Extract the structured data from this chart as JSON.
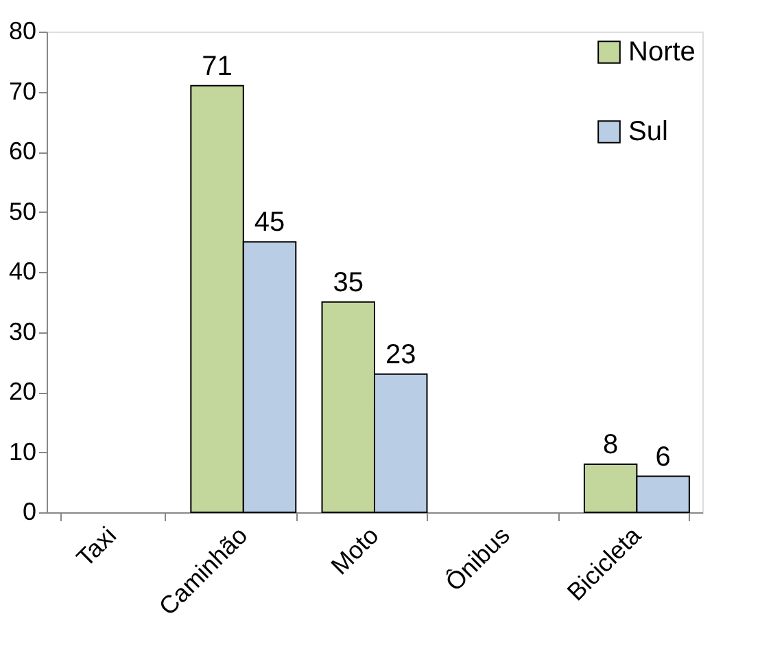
{
  "chart_data": {
    "type": "bar",
    "categories": [
      "Taxi",
      "Caminhão",
      "Moto",
      "Ônibus",
      "Bicicleta"
    ],
    "series": [
      {
        "name": "Norte",
        "color": "#c3d69b",
        "values": [
          null,
          71,
          35,
          null,
          8
        ]
      },
      {
        "name": "Sul",
        "color": "#b9cde5",
        "values": [
          null,
          45,
          23,
          null,
          6
        ]
      }
    ],
    "ylim": [
      0,
      80
    ],
    "yticks": [
      0,
      10,
      20,
      30,
      40,
      50,
      60,
      70,
      80
    ],
    "grid": false,
    "legend": "top right",
    "data_labels": true
  }
}
